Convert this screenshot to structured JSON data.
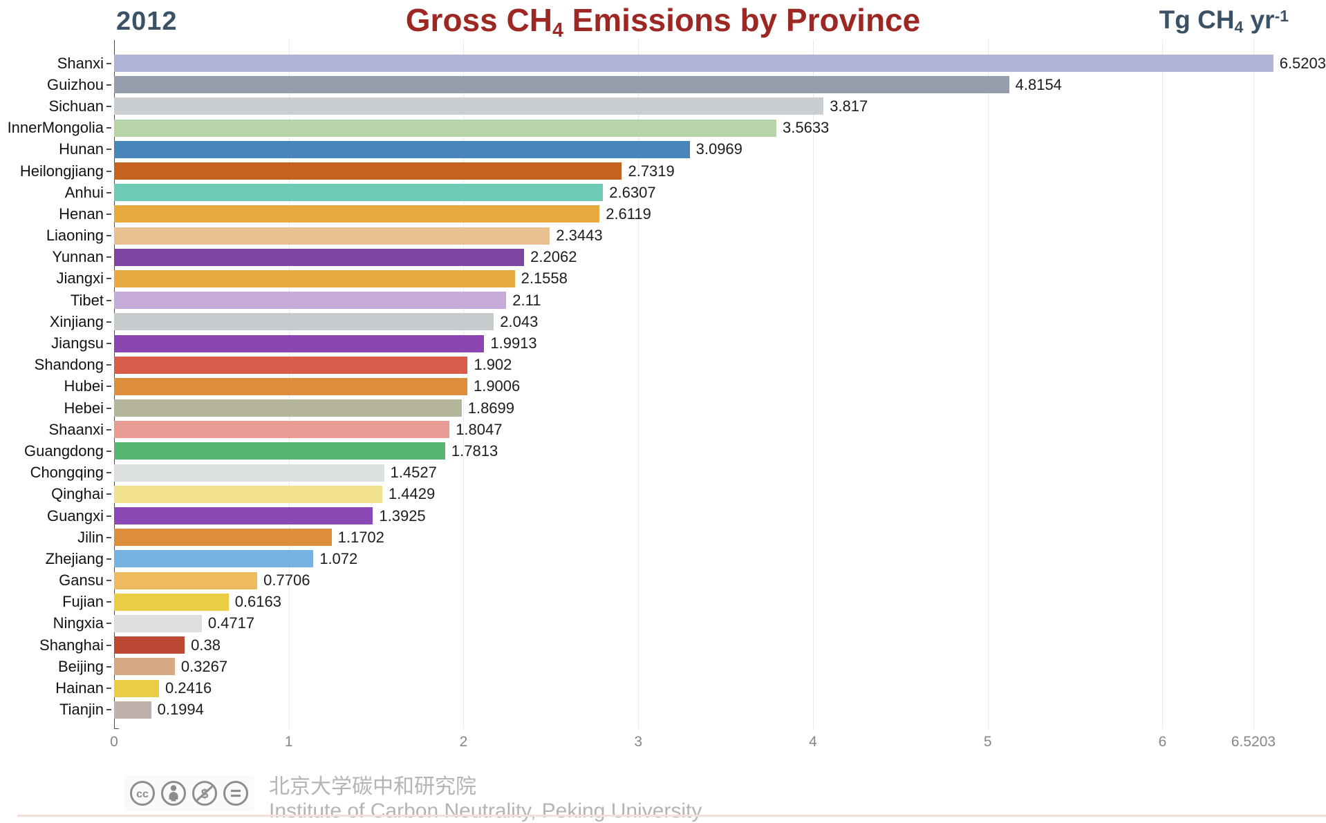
{
  "header": {
    "year": "2012",
    "title": {
      "pre": "Gross CH",
      "sub": "4",
      "post": " Emissions by Province"
    },
    "unit": {
      "pre": "Tg CH",
      "sub": "4",
      "mid": " yr",
      "sup": "-1"
    }
  },
  "chart_data": {
    "type": "bar",
    "orientation": "horizontal",
    "title": "Gross CH4 Emissions by Province",
    "subtitle_year": "2012",
    "value_unit": "Tg CH4 yr-1",
    "xlabel": "",
    "ylabel": "",
    "xlim": [
      0,
      6.5203
    ],
    "x_ticks": [
      "0",
      "1",
      "2",
      "3",
      "4",
      "5",
      "6",
      "6.5203"
    ],
    "grid": "vertical",
    "legend": "none",
    "categories": [
      "Shanxi",
      "Guizhou",
      "Sichuan",
      "InnerMongolia",
      "Hunan",
      "Heilongjiang",
      "Anhui",
      "Henan",
      "Liaoning",
      "Yunnan",
      "Jiangxi",
      "Tibet",
      "Xinjiang",
      "Jiangsu",
      "Shandong",
      "Hubei",
      "Hebei",
      "Shaanxi",
      "Guangdong",
      "Chongqing",
      "Qinghai",
      "Guangxi",
      "Jilin",
      "Zhejiang",
      "Gansu",
      "Fujian",
      "Ningxia",
      "Shanghai",
      "Beijing",
      "Hainan",
      "Tianjin"
    ],
    "values": [
      "6.5203",
      "4.8154",
      "3.817",
      "3.5633",
      "3.0969",
      "2.7319",
      "2.6307",
      "2.6119",
      "2.3443",
      "2.2062",
      "2.1558",
      "2.11",
      "2.043",
      "1.9913",
      "1.902",
      "1.9006",
      "1.8699",
      "1.8047",
      "1.7813",
      "1.4527",
      "1.4429",
      "1.3925",
      "1.1702",
      "1.072",
      "0.7706",
      "0.6163",
      "0.4717",
      "0.38",
      "0.3267",
      "0.2416",
      "0.1994"
    ],
    "colors": [
      "#aeb3d7",
      "#959dac",
      "#c9ced3",
      "#b7d3a8",
      "#4886ba",
      "#c4631f",
      "#6ec9b5",
      "#e7a83e",
      "#e9c08f",
      "#7d46a2",
      "#e7aa42",
      "#c5aada",
      "#c6cbce",
      "#8a46ae",
      "#d95b49",
      "#dc8e3b",
      "#b5b59b",
      "#e79b93",
      "#56b571",
      "#dce0e1",
      "#f1e18e",
      "#8a49b5",
      "#dd8e3a",
      "#76b1e1",
      "#edbb5e",
      "#e9cd42",
      "#dedede",
      "#bd4935",
      "#d5a981",
      "#e9cd45",
      "#c1b1ad"
    ]
  },
  "footer": {
    "license_icons": [
      "cc-icon",
      "attribution-icon",
      "non-commercial-icon",
      "no-derivatives-icon"
    ],
    "credit_line1": "北京大学碳中和研究院",
    "credit_line2": "Institute of Carbon Neutrality, Peking University"
  },
  "style_colors": {
    "title": "#9d2823",
    "header_accent": "#3b5166",
    "gridline": "#e8e8ef",
    "axis": "#4c4c4c",
    "tick_label": "#868686",
    "credit_text": "#b4b4b4"
  }
}
